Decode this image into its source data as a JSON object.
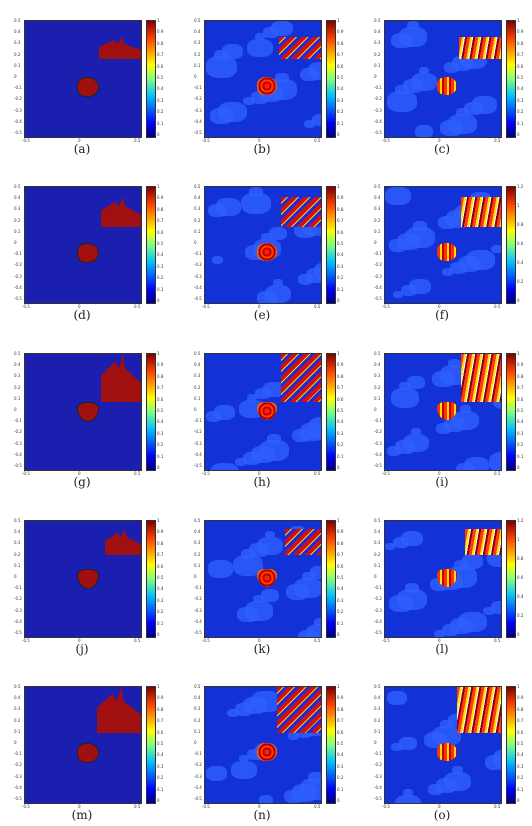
{
  "figure": {
    "captions": [
      "(a)",
      "(b)",
      "(c)",
      "(d)",
      "(e)",
      "(f)",
      "(g)",
      "(h)",
      "(i)",
      "(j)",
      "(k)",
      "(l)",
      "(m)",
      "(n)",
      "(o)"
    ],
    "x_ticks": [
      "-0.5",
      "0",
      "0.5"
    ],
    "y_ticks": [
      "0.5",
      "0.4",
      "0.3",
      "0.2",
      "0.1",
      "0",
      "-0.1",
      "-0.2",
      "-0.3",
      "-0.4",
      "-0.5"
    ],
    "colorbar_ticks_unit": [
      "1",
      "0.9",
      "0.8",
      "0.7",
      "0.6",
      "0.5",
      "0.4",
      "0.3",
      "0.2",
      "0.1",
      "0"
    ],
    "colorbar_ticks_12": [
      "1.2",
      "1",
      "0.8",
      "0.6",
      "0.4",
      "0.2",
      "0"
    ],
    "colors": {
      "background": "#1b1fb0",
      "scatterer": "#a11010",
      "noise": "#2f5fff"
    }
  }
}
